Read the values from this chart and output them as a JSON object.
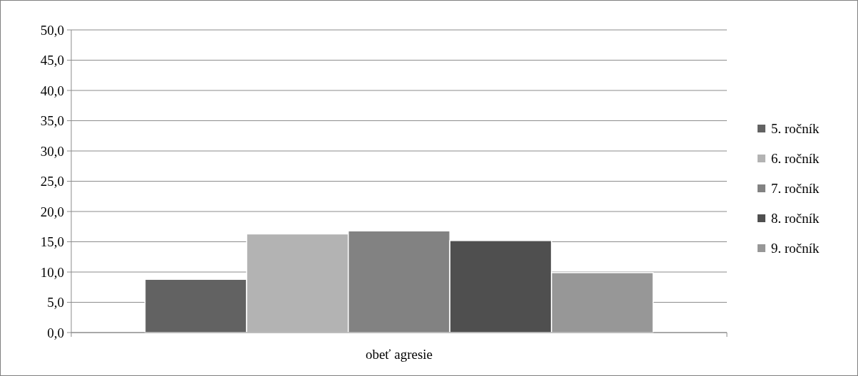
{
  "chart_data": {
    "type": "bar",
    "categories": [
      "obeť agresie"
    ],
    "series": [
      {
        "name": "5. ročník",
        "color": "#626262",
        "values": [
          8.8
        ]
      },
      {
        "name": "6. ročník",
        "color": "#b3b3b3",
        "values": [
          16.3
        ]
      },
      {
        "name": "7. ročník",
        "color": "#828282",
        "values": [
          16.8
        ]
      },
      {
        "name": "8. ročník",
        "color": "#4f4f4f",
        "values": [
          15.2
        ]
      },
      {
        "name": "9. ročník",
        "color": "#979797",
        "values": [
          9.9
        ]
      }
    ],
    "ylim": [
      0,
      50
    ],
    "yticks": [
      {
        "value": 0,
        "label": "0,0"
      },
      {
        "value": 5,
        "label": "5,0"
      },
      {
        "value": 10,
        "label": "10,0"
      },
      {
        "value": 15,
        "label": "15,0"
      },
      {
        "value": 20,
        "label": "20,0"
      },
      {
        "value": 25,
        "label": "25,0"
      },
      {
        "value": 30,
        "label": "30,0"
      },
      {
        "value": 35,
        "label": "35,0"
      },
      {
        "value": 40,
        "label": "40,0"
      },
      {
        "value": 45,
        "label": "45,0"
      },
      {
        "value": 50,
        "label": "50,0"
      }
    ],
    "grid": "y",
    "legend": "right"
  }
}
